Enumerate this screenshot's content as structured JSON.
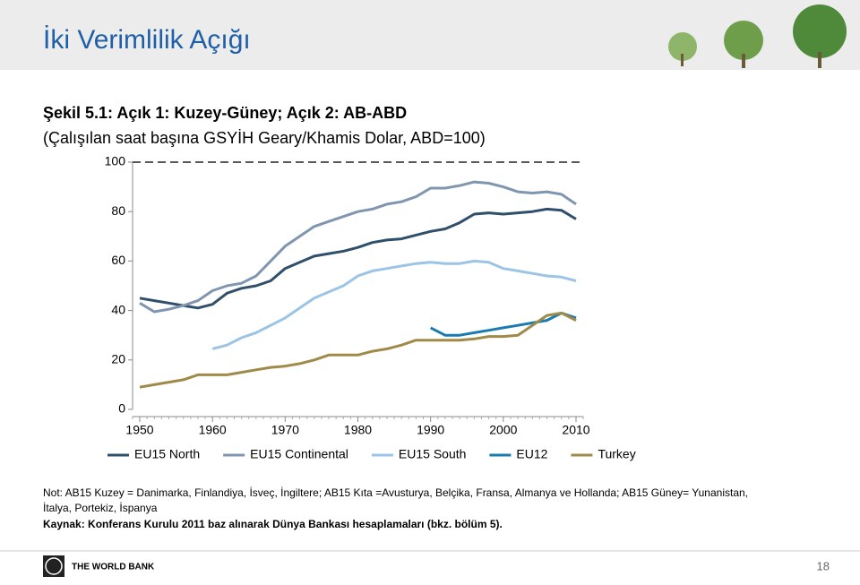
{
  "header": {
    "title": "İki Verimlilik Açığı"
  },
  "caption": {
    "line1": "Şekil 5.1: Açık 1: Kuzey-Güney; Açık 2: AB-ABD",
    "line2": "(Çalışılan saat başına GSYİH Geary/Khamis Dolar, ABD=100)"
  },
  "chart_data": {
    "type": "line",
    "x": [
      1950,
      1952,
      1954,
      1956,
      1958,
      1960,
      1962,
      1964,
      1966,
      1968,
      1970,
      1972,
      1974,
      1976,
      1978,
      1980,
      1982,
      1984,
      1986,
      1988,
      1990,
      1992,
      1994,
      1996,
      1998,
      2000,
      2002,
      2004,
      2006,
      2008,
      2010
    ],
    "series": [
      {
        "name": "EU15 North",
        "color": "#2f4f6b",
        "values": [
          45,
          44,
          43,
          42,
          41,
          42.5,
          47,
          49,
          50,
          52,
          57,
          59.5,
          62,
          63,
          64,
          65.5,
          67.5,
          68.5,
          69,
          70.5,
          72,
          73,
          75.5,
          79,
          79.5,
          79,
          79.5,
          80,
          81,
          80.5,
          77
        ]
      },
      {
        "name": "EU15 Continental",
        "color": "#8096b0",
        "values": [
          43,
          39.5,
          40.5,
          42,
          44,
          48,
          50,
          51,
          54,
          60,
          66,
          70,
          74,
          76,
          78,
          80,
          81,
          83,
          84,
          86,
          89.5,
          89.5,
          90.5,
          92,
          91.5,
          90,
          88,
          87.5,
          88,
          87,
          83
        ]
      },
      {
        "name": "EU15 South",
        "color": "#9cc4e4",
        "values": [
          null,
          null,
          null,
          null,
          null,
          24.5,
          26,
          29,
          31,
          34,
          37,
          41,
          45,
          47.5,
          50,
          54,
          56,
          57,
          58,
          59,
          59.5,
          59,
          59,
          60,
          59.5,
          57,
          56,
          55,
          54,
          53.5,
          52
        ]
      },
      {
        "name": "EU12",
        "color": "#1a7bb0",
        "values": [
          null,
          null,
          null,
          null,
          null,
          null,
          null,
          null,
          null,
          null,
          null,
          null,
          null,
          null,
          null,
          null,
          null,
          null,
          null,
          null,
          33,
          30,
          30,
          31,
          32,
          33,
          34,
          35,
          36,
          39,
          37
        ]
      },
      {
        "name": "Turkey",
        "color": "#a08a4a",
        "values": [
          9,
          10,
          11,
          12,
          14,
          14,
          14,
          15,
          16,
          17,
          17.5,
          18.5,
          20,
          22,
          22,
          22,
          23.5,
          24.5,
          26,
          28,
          28,
          28,
          28,
          28.5,
          29.5,
          29.5,
          30,
          34,
          38,
          39,
          36
        ]
      }
    ],
    "xlim": [
      1949,
      2011
    ],
    "xticks": [
      1950,
      1960,
      1970,
      1980,
      1990,
      2000,
      2010
    ],
    "ylim": [
      0,
      100
    ],
    "yticks": [
      0,
      20,
      40,
      60,
      80,
      100
    ],
    "reference_line": {
      "value": 100,
      "style": "dashed"
    },
    "legend": "bottom"
  },
  "notes": [
    "Not: AB15 Kuzey = Danimarka, Finlandiya, İsveç, İngiltere; AB15 Kıta =Avusturya, Belçika, Fransa, Almanya ve Hollanda; AB15 Güney= Yunanistan,",
    "İtalya, Portekiz, İspanya",
    "Kaynak: Konferans Kurulu 2011 baz alınarak Dünya Bankası hesaplamaları (bkz. bölüm 5)."
  ],
  "footer": {
    "logo": "THE WORLD BANK",
    "page": "18"
  }
}
